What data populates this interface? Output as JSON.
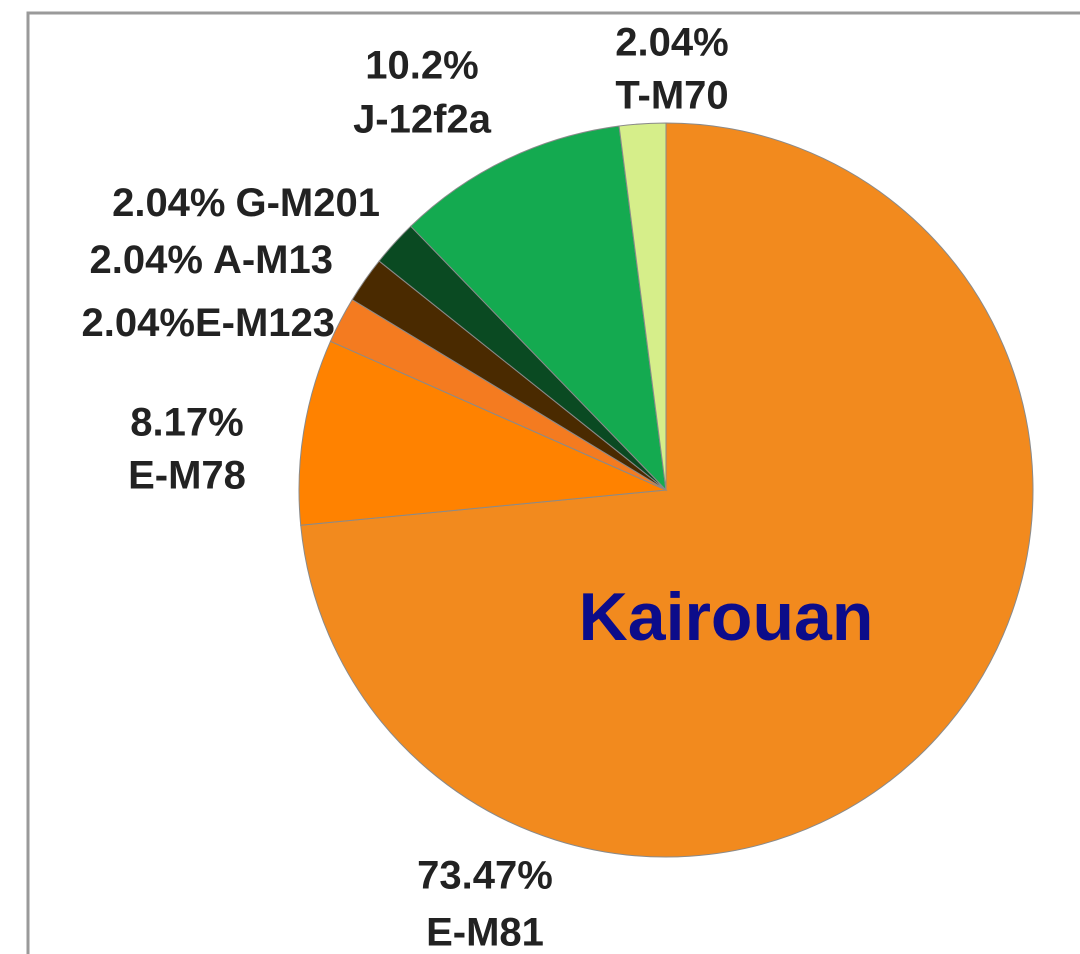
{
  "chart_data": {
    "type": "pie",
    "annotation": "Kairouan",
    "categories": [
      "E-M81",
      "E-M78",
      "E-M123",
      "A-M13",
      "G-M201",
      "J-12f2a",
      "T-M70"
    ],
    "values": [
      73.47,
      8.17,
      2.04,
      2.04,
      2.04,
      10.2,
      2.04
    ],
    "value_labels": [
      "73.47%",
      "8.17%",
      "2.04%",
      "2.04%",
      "2.04%",
      "10.2%",
      "2.04%"
    ],
    "colors": [
      "#f28a1e",
      "#ff8200",
      "#f47b20",
      "#4a2a00",
      "#0a4a22",
      "#14aa50",
      "#d6ee8a"
    ]
  }
}
